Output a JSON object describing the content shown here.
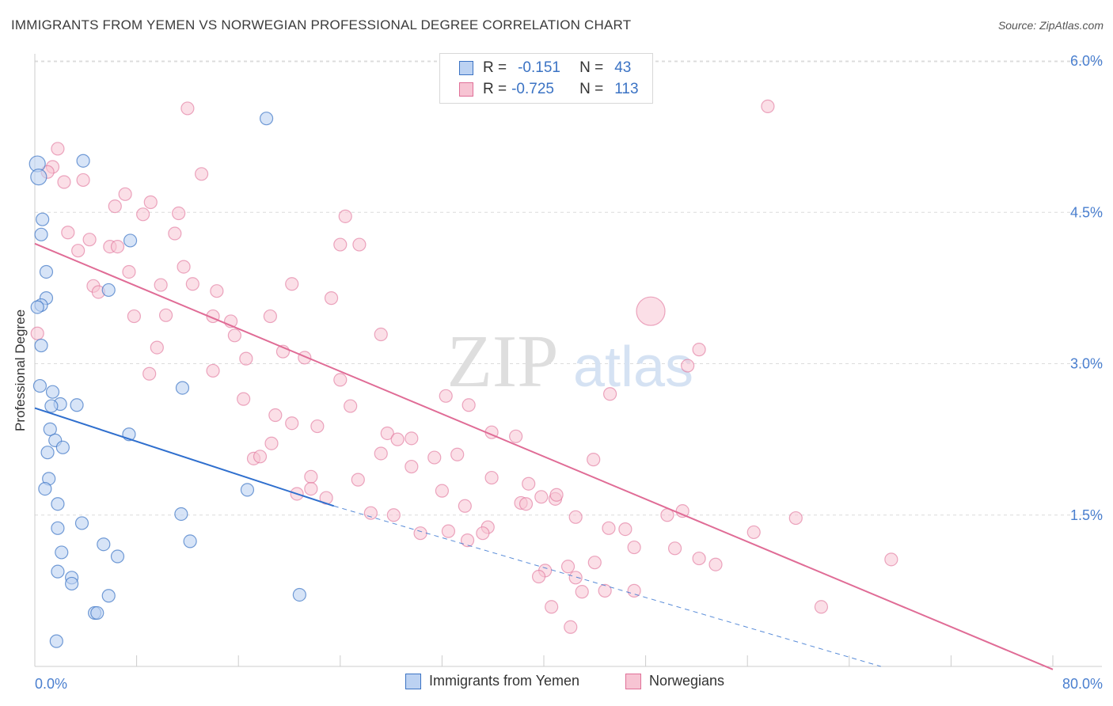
{
  "title": "IMMIGRANTS FROM YEMEN VS NORWEGIAN PROFESSIONAL DEGREE CORRELATION CHART",
  "source": "Source: ZipAtlas.com",
  "colors": {
    "blue": "#3b73c4",
    "blue_fill": "#bcd2f2",
    "blue_line": "#2f6fce",
    "pink": "#e07098",
    "pink_fill": "#f7c4d3",
    "pink_line": "#e06c96",
    "tick_label": "#4a7fcf"
  },
  "legend": {
    "rows": [
      {
        "r_label": "R =",
        "r_value": "-0.151",
        "n_label": "N =",
        "n_value": "43"
      },
      {
        "r_label": "R =",
        "r_value": "-0.725",
        "n_label": "N =",
        "n_value": "113"
      }
    ]
  },
  "bottom_legend": {
    "series1": "Immigrants from Yemen",
    "series2": "Norwegians"
  },
  "watermark": {
    "part1": "ZIP",
    "part2": "atlas"
  },
  "chart_data": {
    "type": "scatter",
    "title": "IMMIGRANTS FROM YEMEN VS NORWEGIAN PROFESSIONAL DEGREE CORRELATION CHART",
    "xlabel": "",
    "ylabel": "Professional Degree",
    "xlim": [
      0,
      80
    ],
    "ylim": [
      0,
      6.3
    ],
    "x_tick_labels": [
      "0.0%",
      "80.0%"
    ],
    "y_ticks": [
      1.5,
      3.0,
      4.5,
      6.0
    ],
    "y_tick_labels": [
      "1.5%",
      "3.0%",
      "4.5%",
      "6.0%"
    ],
    "grid": true,
    "legend_position": "top-center",
    "series": [
      {
        "name": "Immigrants from Yemen",
        "R": -0.151,
        "N": 43,
        "points": [
          [
            0.2,
            4.98
          ],
          [
            0.3,
            4.85
          ],
          [
            3.8,
            5.01
          ],
          [
            18.2,
            5.43
          ],
          [
            0.6,
            4.43
          ],
          [
            0.5,
            4.28
          ],
          [
            7.5,
            4.22
          ],
          [
            0.9,
            3.91
          ],
          [
            0.9,
            3.65
          ],
          [
            5.8,
            3.73
          ],
          [
            0.5,
            3.58
          ],
          [
            0.2,
            3.56
          ],
          [
            0.5,
            3.18
          ],
          [
            0.4,
            2.78
          ],
          [
            1.4,
            2.72
          ],
          [
            2.0,
            2.6
          ],
          [
            3.3,
            2.59
          ],
          [
            1.3,
            2.58
          ],
          [
            11.6,
            2.76
          ],
          [
            1.2,
            2.35
          ],
          [
            7.4,
            2.3
          ],
          [
            1.6,
            2.24
          ],
          [
            2.2,
            2.17
          ],
          [
            1.0,
            2.12
          ],
          [
            1.1,
            1.86
          ],
          [
            0.8,
            1.76
          ],
          [
            16.7,
            1.75
          ],
          [
            1.8,
            1.61
          ],
          [
            11.5,
            1.51
          ],
          [
            1.8,
            1.37
          ],
          [
            3.7,
            1.42
          ],
          [
            12.2,
            1.24
          ],
          [
            5.4,
            1.21
          ],
          [
            2.1,
            1.13
          ],
          [
            6.5,
            1.09
          ],
          [
            1.8,
            0.94
          ],
          [
            2.9,
            0.88
          ],
          [
            2.9,
            0.82
          ],
          [
            5.8,
            0.7
          ],
          [
            20.8,
            0.71
          ],
          [
            4.7,
            0.53
          ],
          [
            4.9,
            0.53
          ],
          [
            1.7,
            0.25
          ]
        ],
        "trend": {
          "x": [
            0,
            23.5
          ],
          "y": [
            2.56,
            1.59
          ]
        },
        "trend_extension": {
          "x": [
            23.5,
            80
          ],
          "y": [
            1.59,
            -0.5
          ]
        }
      },
      {
        "name": "Norwegians",
        "R": -0.725,
        "N": 113,
        "points": [
          [
            12.0,
            5.53
          ],
          [
            57.6,
            5.55
          ],
          [
            1.8,
            5.13
          ],
          [
            1.4,
            4.95
          ],
          [
            1.0,
            4.9
          ],
          [
            2.3,
            4.8
          ],
          [
            3.8,
            4.82
          ],
          [
            13.1,
            4.88
          ],
          [
            7.1,
            4.68
          ],
          [
            9.1,
            4.6
          ],
          [
            6.3,
            4.56
          ],
          [
            8.5,
            4.48
          ],
          [
            11.3,
            4.49
          ],
          [
            24.4,
            4.46
          ],
          [
            2.6,
            4.3
          ],
          [
            4.3,
            4.23
          ],
          [
            3.4,
            4.12
          ],
          [
            5.9,
            4.16
          ],
          [
            6.5,
            4.16
          ],
          [
            11.0,
            4.29
          ],
          [
            24.0,
            4.18
          ],
          [
            25.5,
            4.18
          ],
          [
            7.4,
            3.91
          ],
          [
            11.7,
            3.96
          ],
          [
            9.9,
            3.78
          ],
          [
            4.6,
            3.77
          ],
          [
            5.0,
            3.71
          ],
          [
            12.4,
            3.79
          ],
          [
            14.3,
            3.72
          ],
          [
            20.2,
            3.79
          ],
          [
            23.3,
            3.65
          ],
          [
            7.8,
            3.47
          ],
          [
            10.3,
            3.48
          ],
          [
            14.0,
            3.47
          ],
          [
            15.4,
            3.42
          ],
          [
            18.5,
            3.47
          ],
          [
            48.4,
            3.52
          ],
          [
            0.2,
            3.3
          ],
          [
            15.7,
            3.28
          ],
          [
            27.2,
            3.29
          ],
          [
            9.6,
            3.16
          ],
          [
            19.5,
            3.12
          ],
          [
            21.2,
            3.06
          ],
          [
            16.6,
            3.05
          ],
          [
            14.0,
            2.93
          ],
          [
            9.0,
            2.9
          ],
          [
            24.0,
            2.84
          ],
          [
            52.2,
            3.14
          ],
          [
            51.3,
            2.98
          ],
          [
            32.3,
            2.68
          ],
          [
            16.4,
            2.65
          ],
          [
            24.8,
            2.58
          ],
          [
            34.1,
            2.59
          ],
          [
            45.2,
            2.7
          ],
          [
            18.9,
            2.49
          ],
          [
            20.2,
            2.41
          ],
          [
            22.2,
            2.38
          ],
          [
            27.7,
            2.31
          ],
          [
            35.9,
            2.32
          ],
          [
            37.8,
            2.28
          ],
          [
            29.6,
            2.26
          ],
          [
            18.6,
            2.21
          ],
          [
            27.2,
            2.11
          ],
          [
            28.5,
            2.25
          ],
          [
            31.4,
            2.07
          ],
          [
            33.2,
            2.1
          ],
          [
            17.2,
            2.06
          ],
          [
            17.7,
            2.08
          ],
          [
            29.6,
            1.98
          ],
          [
            43.9,
            2.05
          ],
          [
            21.7,
            1.88
          ],
          [
            25.4,
            1.85
          ],
          [
            35.9,
            1.87
          ],
          [
            38.8,
            1.81
          ],
          [
            20.6,
            1.71
          ],
          [
            21.7,
            1.76
          ],
          [
            32.0,
            1.74
          ],
          [
            22.9,
            1.67
          ],
          [
            38.2,
            1.62
          ],
          [
            38.6,
            1.61
          ],
          [
            39.8,
            1.68
          ],
          [
            40.9,
            1.66
          ],
          [
            41.0,
            1.7
          ],
          [
            33.8,
            1.59
          ],
          [
            26.4,
            1.52
          ],
          [
            28.2,
            1.5
          ],
          [
            30.3,
            1.32
          ],
          [
            32.5,
            1.34
          ],
          [
            35.6,
            1.38
          ],
          [
            35.2,
            1.32
          ],
          [
            34.0,
            1.25
          ],
          [
            42.5,
            1.48
          ],
          [
            45.1,
            1.37
          ],
          [
            46.4,
            1.36
          ],
          [
            49.7,
            1.5
          ],
          [
            50.9,
            1.54
          ],
          [
            56.5,
            1.33
          ],
          [
            59.8,
            1.47
          ],
          [
            47.1,
            1.18
          ],
          [
            50.3,
            1.17
          ],
          [
            52.2,
            1.07
          ],
          [
            53.5,
            1.01
          ],
          [
            67.3,
            1.06
          ],
          [
            44.0,
            1.03
          ],
          [
            40.1,
            0.95
          ],
          [
            39.6,
            0.89
          ],
          [
            41.9,
            0.99
          ],
          [
            42.5,
            0.88
          ],
          [
            43.0,
            0.74
          ],
          [
            44.8,
            0.75
          ],
          [
            47.1,
            0.75
          ],
          [
            40.6,
            0.59
          ],
          [
            42.1,
            0.39
          ],
          [
            61.8,
            0.59
          ]
        ],
        "trend": {
          "x": [
            0,
            80
          ],
          "y": [
            4.19,
            -0.03
          ]
        }
      }
    ]
  }
}
